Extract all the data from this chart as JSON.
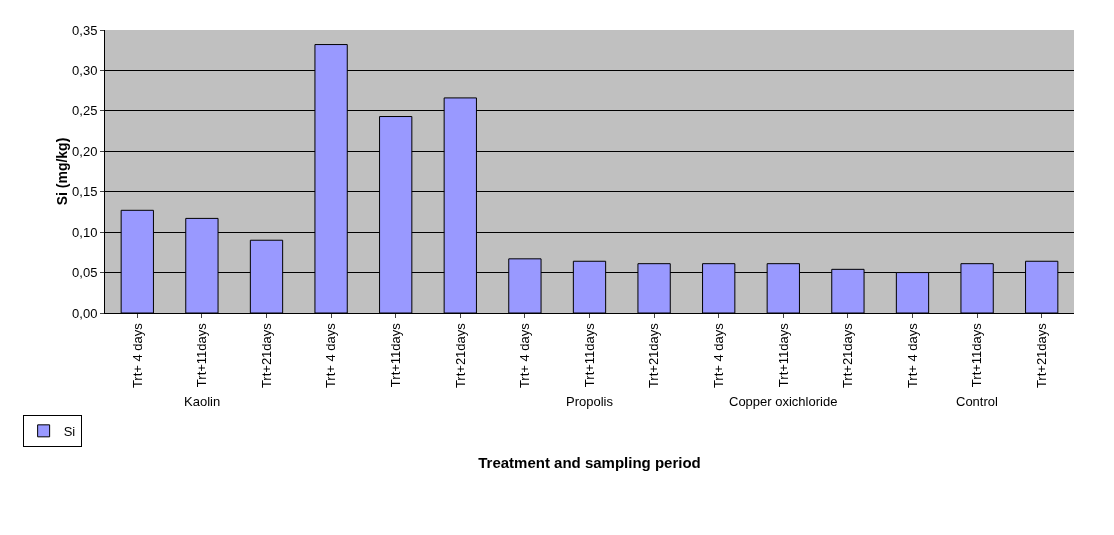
{
  "chart_data": {
    "type": "bar",
    "xlabel": "Treatment and sampling period",
    "ylabel": "Si (mg/kg)",
    "categories": [
      "Trt+ 4 days",
      "Trt+11days",
      "Trt+21days",
      "Trt+ 4 days",
      "Trt+11days",
      "Trt+21days",
      "Trt+ 4 days",
      "Trt+11days",
      "Trt+21days",
      "Trt+ 4 days",
      "Trt+11days",
      "Trt+21days",
      "Trt+ 4 days",
      "Trt+11days",
      "Trt+21days"
    ],
    "series": [
      {
        "name": "Si",
        "color": "#9999ff",
        "values": [
          0.127,
          0.117,
          0.09,
          0.332,
          0.243,
          0.266,
          0.067,
          0.064,
          0.061,
          0.061,
          0.061,
          0.054,
          0.05,
          0.061,
          0.064
        ]
      }
    ],
    "ylim": [
      0,
      0.35
    ],
    "yticks": [
      {
        "value": 0,
        "label": "0,00"
      },
      {
        "value": 0.05,
        "label": "0,05"
      },
      {
        "value": 0.1,
        "label": "0,10"
      },
      {
        "value": 0.15,
        "label": "0,15"
      },
      {
        "value": 0.2,
        "label": "0,20"
      },
      {
        "value": 0.25,
        "label": "0,25"
      },
      {
        "value": 0.3,
        "label": "0,30"
      },
      {
        "value": 0.35,
        "label": "0,35"
      }
    ],
    "grid": "y",
    "legend": "bottom left",
    "annotations": [
      "Kaolin",
      null,
      "Propolis",
      "Copper oxichloride",
      "Control"
    ]
  }
}
